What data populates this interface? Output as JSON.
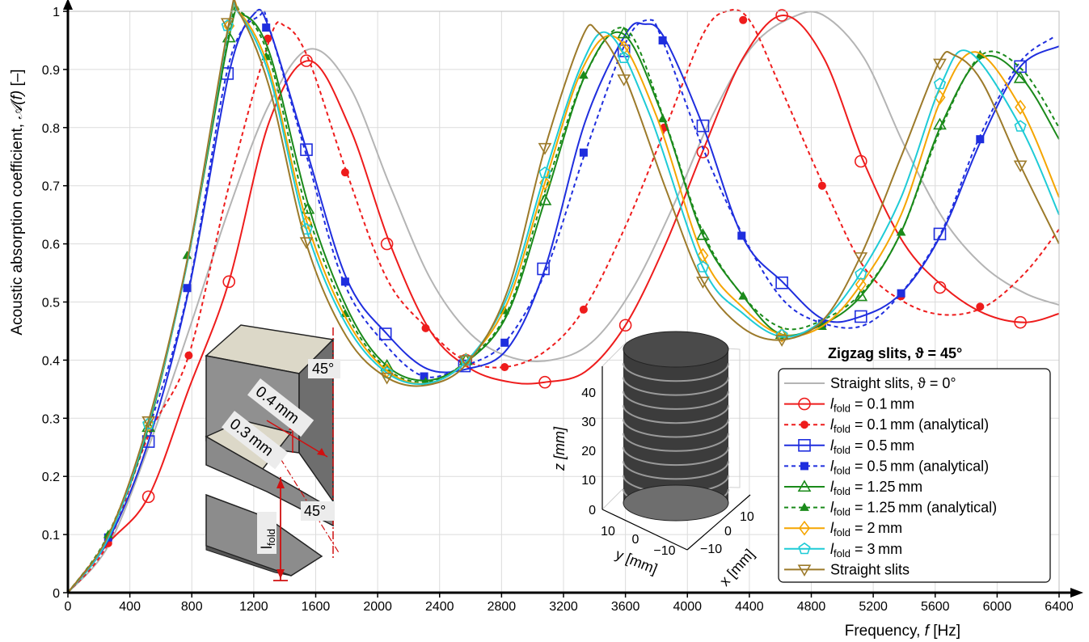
{
  "chart_data": {
    "type": "line",
    "xlabel_prefix": "Frequency, ",
    "xlabel_var": "f",
    "xlabel_unit": " [Hz]",
    "ylabel_prefix": "Acoustic absorption coefficient, ",
    "ylabel_var": "𝒜(f)",
    "ylabel_unit": " [–]",
    "xlim": [
      0,
      6400
    ],
    "ylim": [
      0,
      1
    ],
    "grid": true,
    "xticks": [
      0,
      400,
      800,
      1200,
      1600,
      2000,
      2400,
      2800,
      3200,
      3600,
      4000,
      4400,
      4800,
      5200,
      5600,
      6000,
      6400
    ],
    "xtick_labels": [
      "0",
      "400",
      "800",
      "1200",
      "1600",
      "2000",
      "2400",
      "2800",
      "3200",
      "3600",
      "4000",
      "4400",
      "4800",
      "5200",
      "5600",
      "6000",
      "6400"
    ],
    "yticks": [
      0,
      0.1,
      0.2,
      0.3,
      0.4,
      0.5,
      0.6,
      0.7,
      0.8,
      0.9,
      1
    ],
    "ytick_labels": [
      "0",
      "0.1",
      "0.2",
      "0.3",
      "0.4",
      "0.5",
      "0.6",
      "0.7",
      "0.8",
      "0.9",
      "1"
    ],
    "legend_title": "Zigzag slits, ϑ = 45°",
    "legend_position": "bottom-right",
    "series": [
      {
        "key": "straight0",
        "label": "Straight slits, ϑ = 0°",
        "color": "#b4b4b4",
        "dash": "",
        "marker": "none",
        "x": [
          0,
          260,
          520,
          780,
          1040,
          1300,
          1560,
          1820,
          2080,
          2340,
          2600,
          2860,
          3120,
          3380,
          3640,
          3900,
          4160,
          4420,
          4680,
          4880,
          5140,
          5400,
          5660,
          5920,
          6180,
          6400
        ],
        "y": [
          0,
          0.08,
          0.25,
          0.45,
          0.66,
          0.84,
          0.935,
          0.87,
          0.7,
          0.54,
          0.445,
          0.405,
          0.4,
          0.43,
          0.52,
          0.66,
          0.82,
          0.94,
          0.99,
          0.993,
          0.92,
          0.77,
          0.64,
          0.56,
          0.515,
          0.495
        ]
      },
      {
        "key": "l01",
        "label": "0.1 mm",
        "color": "#ee1c1c",
        "dash": "",
        "marker": "circle-open",
        "x": [
          0,
          260,
          520,
          780,
          1040,
          1300,
          1560,
          1820,
          2080,
          2340,
          2600,
          2860,
          3080,
          3340,
          3600,
          3860,
          4100,
          4360,
          4620,
          4880,
          5140,
          5400,
          5660,
          5920,
          6180,
          6400
        ],
        "y": [
          0,
          0.085,
          0.165,
          0.35,
          0.535,
          0.81,
          0.915,
          0.8,
          0.6,
          0.45,
          0.385,
          0.362,
          0.362,
          0.38,
          0.46,
          0.6,
          0.76,
          0.92,
          0.993,
          0.92,
          0.74,
          0.6,
          0.525,
          0.48,
          0.465,
          0.48
        ],
        "mx": [
          520,
          1040,
          1540,
          2060,
          2570,
          3080,
          3600,
          4100,
          4610,
          5120,
          5630,
          6150
        ],
        "my": [
          0.165,
          0.535,
          0.915,
          0.6,
          0.4,
          0.362,
          0.46,
          0.758,
          0.993,
          0.742,
          0.525,
          0.465
        ]
      },
      {
        "key": "l01a",
        "label": "0.1 mm (analytical)",
        "color": "#ee1c1c",
        "dash": "5,4",
        "marker": "circle-filled",
        "x": [
          0,
          260,
          520,
          780,
          1040,
          1300,
          1400,
          1550,
          1800,
          2060,
          2320,
          2560,
          2820,
          3080,
          3330,
          3600,
          3860,
          4100,
          4250,
          4400,
          4600,
          4880,
          5140,
          5400,
          5660,
          5920,
          6180,
          6400
        ],
        "y": [
          0,
          0.085,
          0.27,
          0.408,
          0.7,
          0.95,
          0.975,
          0.92,
          0.723,
          0.54,
          0.455,
          0.4,
          0.388,
          0.415,
          0.487,
          0.63,
          0.8,
          0.96,
          1.0,
          0.985,
          0.87,
          0.7,
          0.56,
          0.5,
          0.478,
          0.492,
          0.55,
          0.625
        ],
        "mx": [
          260,
          780,
          1290,
          1790,
          2310,
          2820,
          3330,
          3850,
          4360,
          4870,
          5380,
          5890
        ],
        "my": [
          0.085,
          0.408,
          0.953,
          0.723,
          0.455,
          0.388,
          0.487,
          0.8,
          0.985,
          0.7,
          0.51,
          0.492
        ]
      },
      {
        "key": "l05",
        "label": "0.5 mm",
        "color": "#1f2ede",
        "dash": "",
        "marker": "square-open",
        "x": [
          0,
          260,
          520,
          780,
          1040,
          1200,
          1300,
          1540,
          1800,
          2060,
          2320,
          2580,
          2840,
          3080,
          3340,
          3600,
          3720,
          3850,
          4100,
          4360,
          4620,
          4880,
          5120,
          5380,
          5640,
          5900,
          6150,
          6400
        ],
        "y": [
          0,
          0.09,
          0.26,
          0.52,
          0.893,
          0.995,
          0.97,
          0.762,
          0.54,
          0.445,
          0.385,
          0.385,
          0.42,
          0.557,
          0.81,
          0.96,
          0.978,
          0.955,
          0.803,
          0.61,
          0.533,
          0.47,
          0.475,
          0.515,
          0.617,
          0.78,
          0.905,
          0.94
        ],
        "mx": [
          520,
          1030,
          1540,
          2050,
          2560,
          3070,
          3590,
          4100,
          4610,
          5120,
          5630,
          6150
        ],
        "my": [
          0.26,
          0.893,
          0.762,
          0.445,
          0.39,
          0.557,
          0.932,
          0.803,
          0.533,
          0.475,
          0.617,
          0.905
        ]
      },
      {
        "key": "l05a",
        "label": "0.5 mm (analytical)",
        "color": "#1f2ede",
        "dash": "5,4",
        "marker": "square-filled",
        "x": [
          0,
          260,
          520,
          780,
          1040,
          1240,
          1300,
          1540,
          1780,
          2040,
          2300,
          2560,
          2820,
          3080,
          3340,
          3600,
          3750,
          3840,
          4100,
          4360,
          4620,
          4880,
          5140,
          5380,
          5640,
          5880,
          6140,
          6360
        ],
        "y": [
          0,
          0.095,
          0.28,
          0.524,
          0.91,
          0.993,
          0.972,
          0.752,
          0.535,
          0.43,
          0.372,
          0.39,
          0.43,
          0.55,
          0.757,
          0.945,
          0.985,
          0.95,
          0.765,
          0.614,
          0.503,
          0.463,
          0.46,
          0.515,
          0.62,
          0.78,
          0.91,
          0.955
        ],
        "mx": [
          260,
          770,
          1280,
          1790,
          2300,
          2820,
          3330,
          3840,
          4350,
          4870,
          5380,
          5890
        ],
        "my": [
          0.095,
          0.524,
          0.972,
          0.535,
          0.372,
          0.43,
          0.757,
          0.95,
          0.614,
          0.463,
          0.515,
          0.78
        ]
      },
      {
        "key": "l125",
        "label": "1.25 mm",
        "color": "#1a8a1a",
        "dash": "",
        "marker": "triangle-open",
        "x": [
          0,
          260,
          520,
          780,
          1040,
          1120,
          1300,
          1560,
          1820,
          2060,
          2320,
          2580,
          2840,
          3080,
          3340,
          3580,
          3840,
          4100,
          4360,
          4600,
          4860,
          5120,
          5380,
          5640,
          5900,
          6160,
          6400
        ],
        "y": [
          0,
          0.095,
          0.285,
          0.58,
          0.955,
          0.995,
          0.93,
          0.66,
          0.48,
          0.39,
          0.365,
          0.398,
          0.48,
          0.675,
          0.89,
          0.962,
          0.82,
          0.615,
          0.51,
          0.445,
          0.46,
          0.51,
          0.62,
          0.805,
          0.92,
          0.885,
          0.78
        ],
        "mx": [
          520,
          1040,
          1550,
          2060,
          2570,
          3080,
          3590,
          4100,
          4610,
          5120,
          5630,
          6150
        ],
        "my": [
          0.285,
          0.955,
          0.66,
          0.39,
          0.4,
          0.675,
          0.962,
          0.615,
          0.445,
          0.51,
          0.805,
          0.885
        ]
      },
      {
        "key": "l125a",
        "label": "1.25 mm (analytical)",
        "color": "#1a8a1a",
        "dash": "5,4",
        "marker": "triangle-filled",
        "x": [
          0,
          260,
          520,
          780,
          1040,
          1120,
          1300,
          1540,
          1800,
          2060,
          2320,
          2580,
          2840,
          3080,
          3340,
          3600,
          3850,
          4100,
          4360,
          4620,
          4880,
          5140,
          5380,
          5640,
          5900,
          6160,
          6400
        ],
        "y": [
          0,
          0.1,
          0.29,
          0.58,
          0.965,
          0.998,
          0.92,
          0.66,
          0.48,
          0.385,
          0.363,
          0.4,
          0.485,
          0.69,
          0.89,
          0.97,
          0.815,
          0.62,
          0.51,
          0.455,
          0.47,
          0.52,
          0.62,
          0.8,
          0.925,
          0.9,
          0.8
        ],
        "mx": [
          260,
          770,
          1280,
          1790,
          2310,
          2820,
          3330,
          3840,
          4360,
          4870,
          5380,
          5890
        ],
        "my": [
          0.1,
          0.58,
          0.922,
          0.48,
          0.363,
          0.485,
          0.89,
          0.815,
          0.51,
          0.458,
          0.62,
          0.925
        ]
      },
      {
        "key": "l2",
        "label": "2 mm",
        "color": "#f5a500",
        "dash": "",
        "marker": "diamond-open",
        "x": [
          0,
          260,
          520,
          780,
          1040,
          1110,
          1300,
          1540,
          1800,
          2060,
          2320,
          2580,
          2840,
          3080,
          3320,
          3540,
          3800,
          4100,
          4360,
          4620,
          4880,
          5120,
          5380,
          5640,
          5860,
          6150,
          6400
        ],
        "y": [
          0,
          0.095,
          0.29,
          0.58,
          0.975,
          0.997,
          0.9,
          0.64,
          0.47,
          0.382,
          0.36,
          0.4,
          0.5,
          0.705,
          0.9,
          0.955,
          0.82,
          0.58,
          0.49,
          0.443,
          0.46,
          0.53,
          0.65,
          0.85,
          0.93,
          0.835,
          0.68
        ],
        "mx": [
          520,
          1040,
          1540,
          2060,
          2570,
          3080,
          3590,
          4100,
          4610,
          5120,
          5630,
          6150
        ],
        "my": [
          0.29,
          0.975,
          0.636,
          0.382,
          0.4,
          0.705,
          0.937,
          0.58,
          0.443,
          0.53,
          0.852,
          0.835
        ]
      },
      {
        "key": "l3",
        "label": "3 mm",
        "color": "#1ecbd6",
        "dash": "",
        "marker": "pentagon-open",
        "x": [
          0,
          260,
          520,
          780,
          1040,
          1100,
          1300,
          1540,
          1800,
          2060,
          2320,
          2580,
          2840,
          3080,
          3320,
          3500,
          3760,
          4100,
          4360,
          4620,
          4880,
          5120,
          5380,
          5640,
          5820,
          6150,
          6400
        ],
        "y": [
          0,
          0.093,
          0.29,
          0.58,
          0.975,
          0.998,
          0.89,
          0.625,
          0.46,
          0.378,
          0.36,
          0.4,
          0.51,
          0.72,
          0.91,
          0.96,
          0.82,
          0.56,
          0.48,
          0.44,
          0.47,
          0.55,
          0.68,
          0.875,
          0.93,
          0.802,
          0.65
        ],
        "mx": [
          520,
          1030,
          1540,
          2060,
          2570,
          3080,
          3590,
          4100,
          4610,
          5120,
          5630,
          6150
        ],
        "my": [
          0.29,
          0.975,
          0.625,
          0.378,
          0.4,
          0.722,
          0.92,
          0.56,
          0.443,
          0.548,
          0.875,
          0.802
        ]
      },
      {
        "key": "straight",
        "label": "Straight slits",
        "color": "#9c7a2a",
        "dash": "",
        "marker": "triangle-down-open",
        "x": [
          0,
          260,
          520,
          780,
          1040,
          1100,
          1300,
          1540,
          1800,
          2060,
          2320,
          2580,
          2840,
          3080,
          3320,
          3420,
          3600,
          3860,
          4100,
          4360,
          4620,
          4880,
          5120,
          5380,
          5620,
          5720,
          5900,
          6150,
          6400
        ],
        "y": [
          0,
          0.098,
          0.295,
          0.585,
          0.98,
          1.0,
          0.87,
          0.6,
          0.44,
          0.37,
          0.357,
          0.395,
          0.52,
          0.765,
          0.955,
          0.965,
          0.885,
          0.695,
          0.535,
          0.455,
          0.435,
          0.47,
          0.58,
          0.75,
          0.91,
          0.925,
          0.88,
          0.735,
          0.6
        ],
        "mx": [
          520,
          1030,
          1540,
          2060,
          2570,
          3080,
          3590,
          4100,
          4610,
          5120,
          5630,
          6150
        ],
        "my": [
          0.295,
          0.98,
          0.603,
          0.37,
          0.4,
          0.765,
          0.883,
          0.535,
          0.435,
          0.577,
          0.91,
          0.735
        ]
      }
    ]
  },
  "legend_prefix_l": "l",
  "legend_prefix_sub": "fold",
  "legend_prefix_eq": " = ",
  "inset_slit": {
    "angle_top": "45°",
    "angle_bottom": "45°",
    "dim_04": "0.4 mm",
    "dim_03": "0.3 mm",
    "lfold_l": "l",
    "lfold_sub": "fold"
  },
  "inset_3d": {
    "z_label": "z [mm]",
    "y_label": "y [mm]",
    "x_label": "x [mm]",
    "z_ticks": [
      "40",
      "30",
      "20",
      "10",
      "0"
    ],
    "y_ticks": [
      "10",
      "0",
      "−10"
    ],
    "x_ticks": [
      "10",
      "0",
      "−10"
    ]
  }
}
